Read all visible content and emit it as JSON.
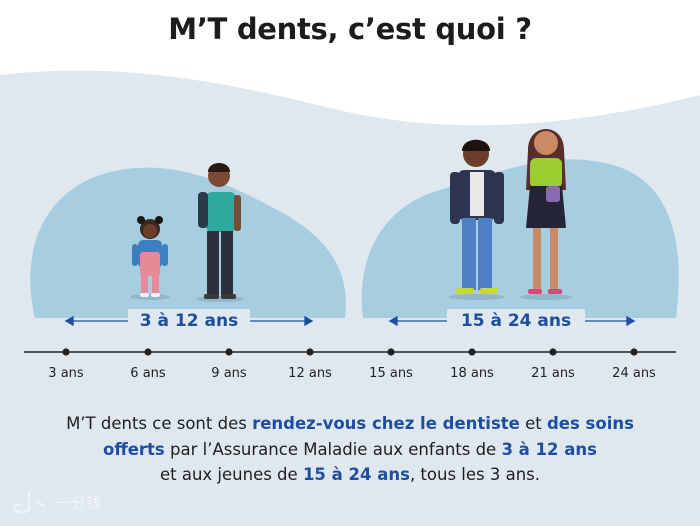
{
  "title": "M’T dents, c’est quoi ?",
  "ranges": {
    "left_label": "3 à 12 ans",
    "right_label": "15 à 24 ans"
  },
  "timeline": {
    "ticks": [
      "3 ans",
      "6 ans",
      "9 ans",
      "12 ans",
      "15 ans",
      "18 ans",
      "21 ans",
      "24 ans"
    ]
  },
  "description": {
    "t1": "M’T dents ce sont des ",
    "h1": "rendez-vous chez le dentiste",
    "t2": " et ",
    "h2": "des soins offerts",
    "t3": " par l’Assurance Maladie aux enfants de ",
    "h3": "3 à 12 ans",
    "t4": " et aux jeunes de ",
    "h4": "15 à 24 ans",
    "t5": ", tous les 3 ans."
  },
  "watermark": {
    "text": "一分钱"
  },
  "colors": {
    "accent": "#1f4ea0",
    "background": "#dfe8ef",
    "blob": "#a7cde0"
  }
}
